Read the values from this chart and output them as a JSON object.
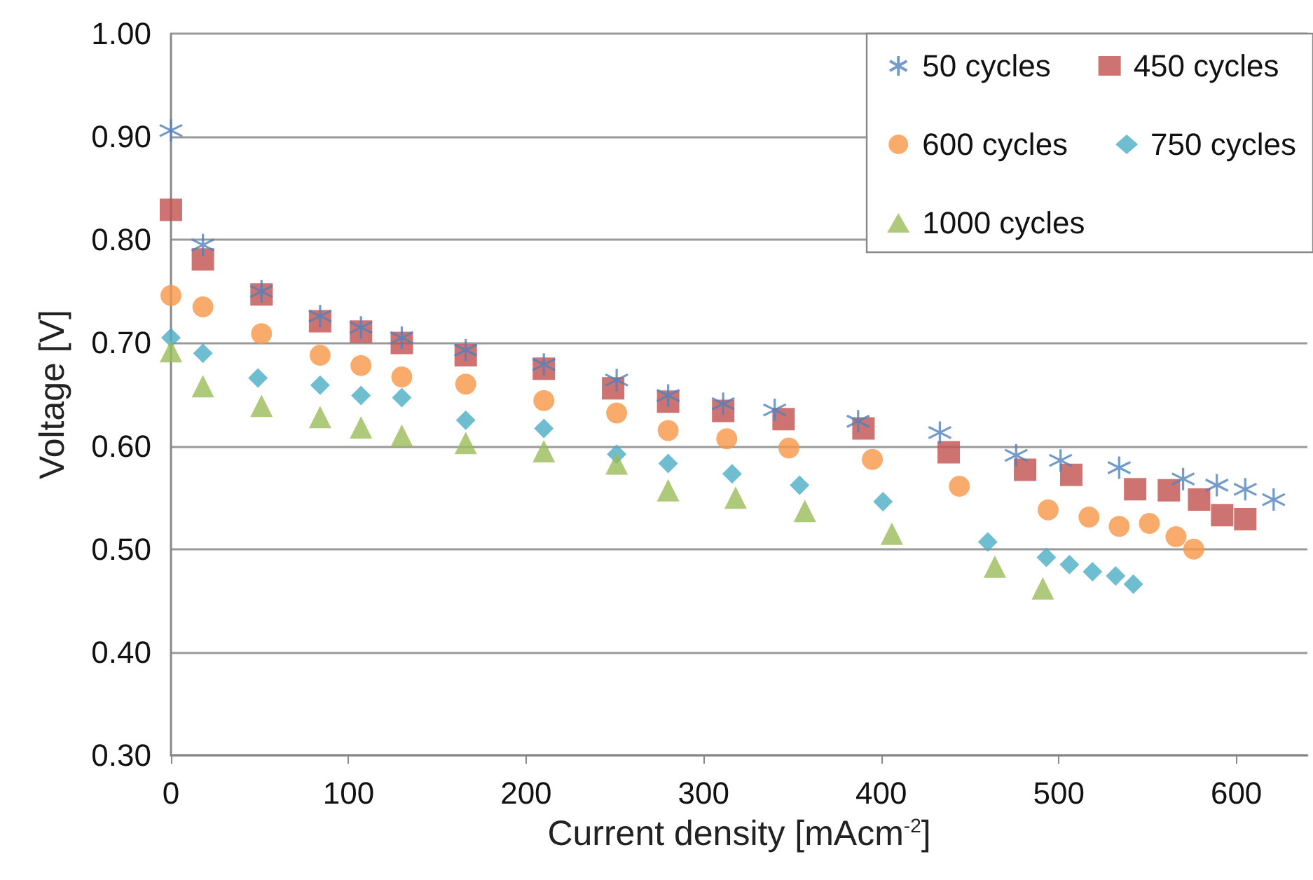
{
  "chart_data": {
    "type": "scatter",
    "xlabel": "Current density [mAcm$^{-2}$]",
    "ylabel": "Voltage [V]",
    "xlim": [
      0,
      640
    ],
    "xticks": [
      0,
      100,
      200,
      300,
      400,
      500,
      600
    ],
    "ylim": [
      0.3,
      1.0
    ],
    "yticks": [
      {
        "value": 0.3,
        "label": "0.30"
      },
      {
        "value": 0.4,
        "label": "0.40"
      },
      {
        "value": 0.5,
        "label": "0.50"
      },
      {
        "value": 0.6,
        "label": "0.60"
      },
      {
        "value": 0.7,
        "label": "0.70"
      },
      {
        "value": 0.8,
        "label": "0.80"
      },
      {
        "value": 0.9,
        "label": "0.90"
      },
      {
        "value": 1.0,
        "label": "1.00"
      }
    ],
    "grid": "y",
    "legend": "top right",
    "series": [
      {
        "name": "50 cycles",
        "color": "#4f81bd",
        "marker": "cross",
        "x": [
          0,
          18,
          51,
          84,
          107,
          130,
          166,
          210,
          251,
          280,
          311,
          340,
          387,
          433,
          476,
          501,
          534,
          570,
          589,
          605,
          621
        ],
        "values": [
          0.906,
          0.795,
          0.75,
          0.726,
          0.715,
          0.705,
          0.693,
          0.679,
          0.664,
          0.649,
          0.641,
          0.635,
          0.624,
          0.613,
          0.591,
          0.586,
          0.579,
          0.568,
          0.562,
          0.558,
          0.548
        ]
      },
      {
        "name": "450 cycles",
        "color": "#c0504d",
        "marker": "square",
        "x": [
          0,
          18,
          51,
          84,
          107,
          130,
          166,
          210,
          249,
          280,
          311,
          345,
          390,
          438,
          481,
          507,
          543,
          562,
          579,
          592,
          605
        ],
        "values": [
          0.829,
          0.781,
          0.747,
          0.721,
          0.711,
          0.7,
          0.688,
          0.675,
          0.656,
          0.643,
          0.634,
          0.626,
          0.617,
          0.594,
          0.577,
          0.572,
          0.558,
          0.557,
          0.548,
          0.533,
          0.529
        ]
      },
      {
        "name": "600 cycles",
        "color": "#f79646",
        "marker": "circle",
        "x": [
          0,
          18,
          51,
          84,
          107,
          130,
          166,
          210,
          251,
          280,
          313,
          348,
          395,
          444,
          494,
          517,
          534,
          551,
          566,
          576
        ],
        "values": [
          0.746,
          0.735,
          0.709,
          0.688,
          0.678,
          0.667,
          0.66,
          0.644,
          0.632,
          0.615,
          0.607,
          0.598,
          0.587,
          0.561,
          0.538,
          0.531,
          0.522,
          0.525,
          0.512,
          0.5
        ]
      },
      {
        "name": "750 cycles",
        "color": "#4bacc6",
        "marker": "diamond",
        "x": [
          0,
          18,
          49,
          84,
          107,
          130,
          166,
          210,
          251,
          280,
          316,
          354,
          401,
          460,
          493,
          506,
          519,
          532,
          542
        ],
        "values": [
          0.705,
          0.69,
          0.666,
          0.659,
          0.649,
          0.647,
          0.625,
          0.617,
          0.592,
          0.583,
          0.573,
          0.562,
          0.546,
          0.507,
          0.492,
          0.485,
          0.478,
          0.474,
          0.466
        ]
      },
      {
        "name": "1000 cycles",
        "color": "#9bbb59",
        "marker": "triangle",
        "x": [
          0,
          18,
          51,
          84,
          107,
          130,
          166,
          210,
          251,
          280,
          318,
          357,
          406,
          464,
          491
        ],
        "values": [
          0.692,
          0.658,
          0.639,
          0.628,
          0.618,
          0.61,
          0.603,
          0.595,
          0.583,
          0.557,
          0.55,
          0.537,
          0.515,
          0.483,
          0.462
        ]
      }
    ]
  }
}
